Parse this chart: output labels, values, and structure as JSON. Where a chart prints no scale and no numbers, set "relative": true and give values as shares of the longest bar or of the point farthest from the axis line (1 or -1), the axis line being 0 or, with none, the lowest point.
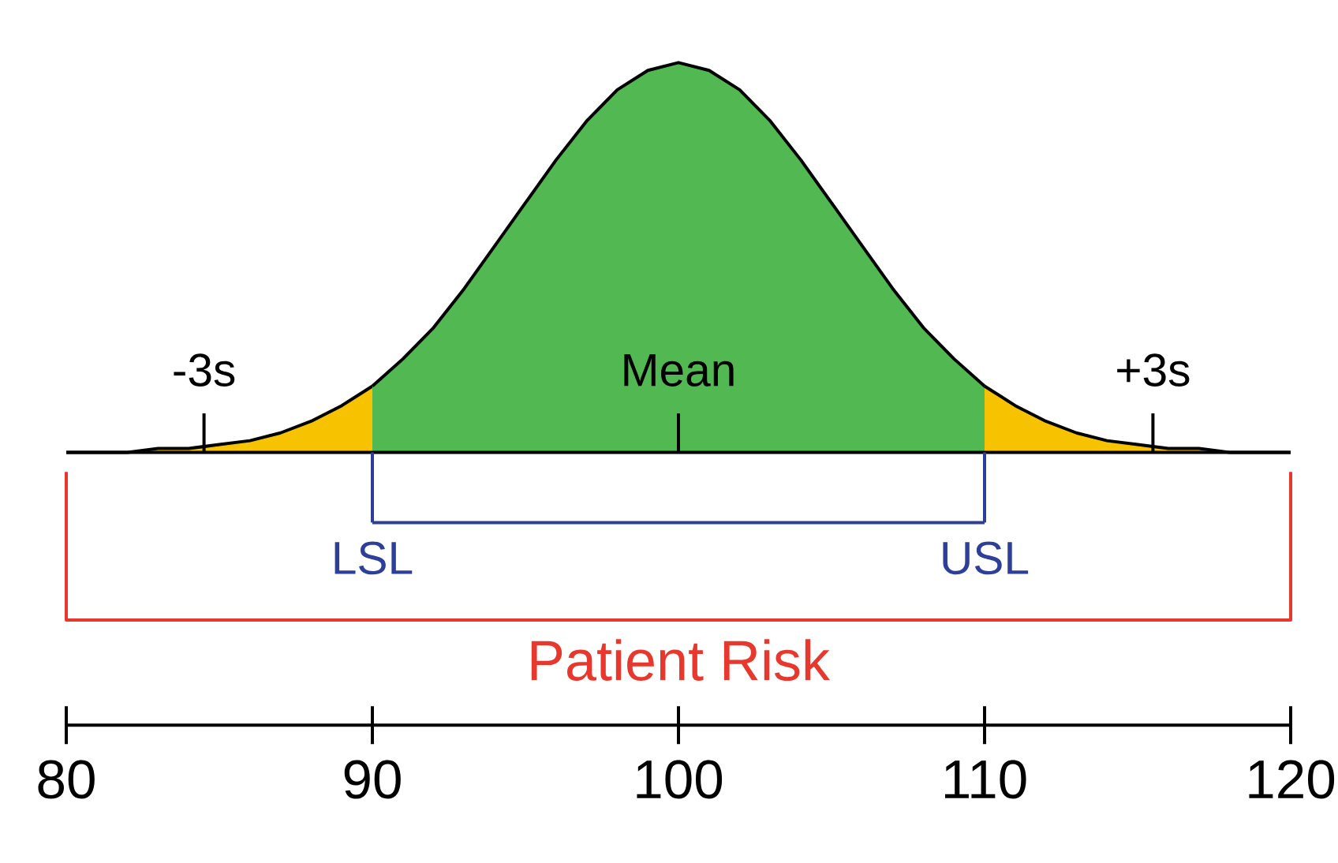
{
  "chart_data": {
    "type": "area",
    "relative": true,
    "xlim": [
      80,
      120
    ],
    "xticks": [
      80,
      90,
      100,
      110,
      120
    ],
    "series": [
      {
        "x": [
          80,
          81,
          82,
          83,
          84,
          85,
          86,
          87,
          88,
          89,
          90
        ],
        "values": [
          0.0,
          0.0,
          0.0,
          0.01,
          0.01,
          0.02,
          0.03,
          0.05,
          0.08,
          0.12,
          0.17
        ],
        "color": "#f7c300"
      },
      {
        "x": [
          90,
          91,
          92,
          93,
          94,
          95,
          96,
          97,
          98,
          99,
          100,
          101,
          102,
          103,
          104,
          105,
          106,
          107,
          108,
          109,
          110
        ],
        "values": [
          0.17,
          0.24,
          0.32,
          0.42,
          0.53,
          0.64,
          0.75,
          0.85,
          0.93,
          0.98,
          1.0,
          0.98,
          0.93,
          0.85,
          0.75,
          0.64,
          0.53,
          0.42,
          0.32,
          0.24,
          0.17
        ],
        "color": "#52b852"
      },
      {
        "x": [
          110,
          111,
          112,
          113,
          114,
          115,
          116,
          117,
          118,
          119,
          120
        ],
        "values": [
          0.17,
          0.12,
          0.08,
          0.05,
          0.03,
          0.02,
          0.01,
          0.01,
          0.0,
          0.0,
          0.0
        ],
        "color": "#f7c300"
      }
    ],
    "ref_lines": [
      {
        "axis": "x",
        "value": 84.5,
        "label": "-3s"
      },
      {
        "axis": "x",
        "value": 100,
        "label": "Mean"
      },
      {
        "axis": "x",
        "value": 115.5,
        "label": "+3s"
      },
      {
        "axis": "x",
        "value": 90,
        "label": "LSL",
        "color": "#2e3f9a"
      },
      {
        "axis": "x",
        "value": 110,
        "label": "USL",
        "color": "#2e3f9a"
      }
    ],
    "annotations": [
      "Patient Risk"
    ]
  }
}
